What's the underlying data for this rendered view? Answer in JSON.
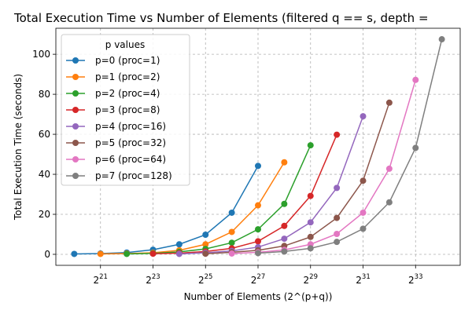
{
  "chart_data": {
    "type": "line",
    "title": "Total Execution Time vs Number of Elements (filtered q == s, depth =",
    "xlabel": "Number of Elements (2^(p+q))",
    "ylabel": "Total Execution Time (seconds)",
    "x_scale": "log2",
    "x_tick_exponents": [
      21,
      23,
      25,
      27,
      29,
      31,
      33
    ],
    "x_tick_base": "2",
    "y_ticks": [
      0,
      20,
      40,
      60,
      80,
      100
    ],
    "xlim_exponent": [
      19.3,
      34.7
    ],
    "ylim": [
      -5.5,
      113
    ],
    "grid": true,
    "legend": {
      "title": "p values",
      "placement": "top-left"
    },
    "series": [
      {
        "name": "p=0 (proc=1)",
        "color": "#1f77b4",
        "x_exponents": [
          20,
          21,
          22,
          23,
          24,
          25,
          26,
          27
        ],
        "values": [
          0.2,
          0.4,
          0.9,
          2.3,
          5.0,
          9.8,
          20.8,
          44.2
        ]
      },
      {
        "name": "p=1 (proc=2)",
        "color": "#ff7f0e",
        "x_exponents": [
          21,
          22,
          23,
          24,
          25,
          26,
          27,
          28
        ],
        "values": [
          0.2,
          0.4,
          0.8,
          2.0,
          5.0,
          11.2,
          24.5,
          46.0
        ]
      },
      {
        "name": "p=2 (proc=4)",
        "color": "#2ca02c",
        "x_exponents": [
          22,
          23,
          24,
          25,
          26,
          27,
          28,
          29
        ],
        "values": [
          0.2,
          0.5,
          1.2,
          2.7,
          5.8,
          12.5,
          25.2,
          54.5
        ]
      },
      {
        "name": "p=3 (proc=8)",
        "color": "#d62728",
        "x_exponents": [
          23,
          24,
          25,
          26,
          27,
          28,
          29,
          30
        ],
        "values": [
          0.3,
          0.6,
          1.4,
          3.0,
          6.5,
          14.2,
          29.2,
          59.8
        ]
      },
      {
        "name": "p=4 (proc=16)",
        "color": "#9467bd",
        "x_exponents": [
          24,
          25,
          26,
          27,
          28,
          29,
          30,
          31
        ],
        "values": [
          0.2,
          0.8,
          1.7,
          3.6,
          7.8,
          16.0,
          33.2,
          69.0
        ]
      },
      {
        "name": "p=5 (proc=32)",
        "color": "#8c564b",
        "x_exponents": [
          25,
          26,
          27,
          28,
          29,
          30,
          31,
          32
        ],
        "values": [
          0.3,
          1.0,
          2.0,
          4.2,
          8.7,
          18.2,
          36.8,
          75.8
        ]
      },
      {
        "name": "p=6 (proc=64)",
        "color": "#e377c2",
        "x_exponents": [
          26,
          27,
          28,
          29,
          30,
          31,
          32,
          33
        ],
        "values": [
          0.4,
          1.0,
          2.2,
          5.0,
          10.2,
          20.8,
          42.8,
          87.2
        ]
      },
      {
        "name": "p=7 (proc=128)",
        "color": "#7f7f7f",
        "x_exponents": [
          27,
          28,
          29,
          30,
          31,
          32,
          33,
          34
        ],
        "values": [
          0.6,
          1.4,
          3.0,
          6.2,
          12.8,
          26.0,
          53.2,
          107.5
        ]
      }
    ]
  }
}
